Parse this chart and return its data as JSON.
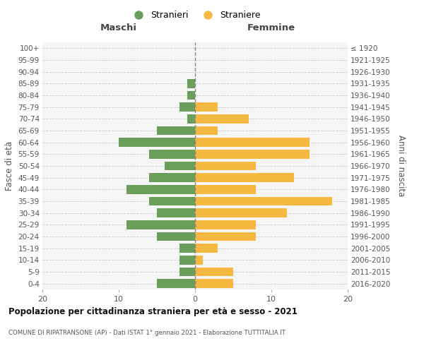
{
  "age_groups": [
    "0-4",
    "5-9",
    "10-14",
    "15-19",
    "20-24",
    "25-29",
    "30-34",
    "35-39",
    "40-44",
    "45-49",
    "50-54",
    "55-59",
    "60-64",
    "65-69",
    "70-74",
    "75-79",
    "80-84",
    "85-89",
    "90-94",
    "95-99",
    "100+"
  ],
  "birth_years": [
    "2016-2020",
    "2011-2015",
    "2006-2010",
    "2001-2005",
    "1996-2000",
    "1991-1995",
    "1986-1990",
    "1981-1985",
    "1976-1980",
    "1971-1975",
    "1966-1970",
    "1961-1965",
    "1956-1960",
    "1951-1955",
    "1946-1950",
    "1941-1945",
    "1936-1940",
    "1931-1935",
    "1926-1930",
    "1921-1925",
    "≤ 1920"
  ],
  "maschi": [
    5,
    2,
    2,
    2,
    5,
    9,
    5,
    6,
    9,
    6,
    4,
    6,
    10,
    5,
    1,
    2,
    1,
    1,
    0,
    0,
    0
  ],
  "femmine": [
    5,
    5,
    1,
    3,
    8,
    8,
    12,
    18,
    8,
    13,
    8,
    15,
    15,
    3,
    7,
    3,
    0,
    0,
    0,
    0,
    0
  ],
  "male_color": "#6a9e5b",
  "female_color": "#f5b942",
  "bg_color": "#f5f5f5",
  "grid_color": "#cccccc",
  "title": "Popolazione per cittadinanza straniera per età e sesso - 2021",
  "subtitle": "COMUNE DI RIPATRANSONE (AP) - Dati ISTAT 1° gennaio 2021 - Elaborazione TUTTITALIA.IT",
  "xlabel_left": "Maschi",
  "xlabel_right": "Femmine",
  "ylabel_left": "Fasce di età",
  "ylabel_right": "Anni di nascita",
  "legend_stranieri": "Stranieri",
  "legend_straniere": "Straniere",
  "xlim": 20
}
